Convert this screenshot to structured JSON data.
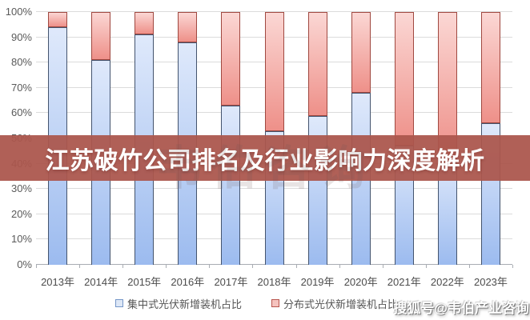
{
  "banner": {
    "title": "江苏破竹公司排名及行业影响力深度解析",
    "bg_color": "#ab564c",
    "text_color": "#ffffff"
  },
  "watermarks": {
    "center": "韦伯咨询",
    "bottom_right": "搜狐号@韦伯产业咨询"
  },
  "legend": {
    "items": [
      {
        "label": "集中式光伏新增装机占比",
        "fill": "#dde7f6",
        "border": "#7596c8"
      },
      {
        "label": "分布式光伏新增装机占比",
        "fill": "#f5c3be",
        "border": "#b8564e"
      }
    ]
  },
  "chart_data": {
    "type": "bar",
    "stacked": true,
    "title": "",
    "xlabel": "",
    "ylabel": "",
    "categories": [
      "2013年",
      "2014年",
      "2015年",
      "2016年",
      "2017年",
      "2018年",
      "2019年",
      "2020年",
      "2021年",
      "2022年",
      "2023年"
    ],
    "series": [
      {
        "name": "集中式光伏新增装机占比",
        "values": [
          94,
          81,
          91,
          88,
          63,
          53,
          59,
          68,
          47,
          42,
          56
        ],
        "color_top": "#dfe9fb",
        "color_bottom": "#9cbbef",
        "border": "#44546e"
      },
      {
        "name": "分布式光伏新增装机占比",
        "values": [
          6,
          19,
          9,
          12,
          37,
          47,
          41,
          32,
          53,
          58,
          44
        ],
        "color_top": "#fbd7d4",
        "color_bottom": "#ee9089",
        "border": "#a04840"
      }
    ],
    "ylim": [
      0,
      100
    ],
    "y_ticks": [
      "0%",
      "10%",
      "20%",
      "30%",
      "40%",
      "50%",
      "60%",
      "70%",
      "80%",
      "90%",
      "100%"
    ],
    "grid": true,
    "legend_position": "bottom"
  }
}
